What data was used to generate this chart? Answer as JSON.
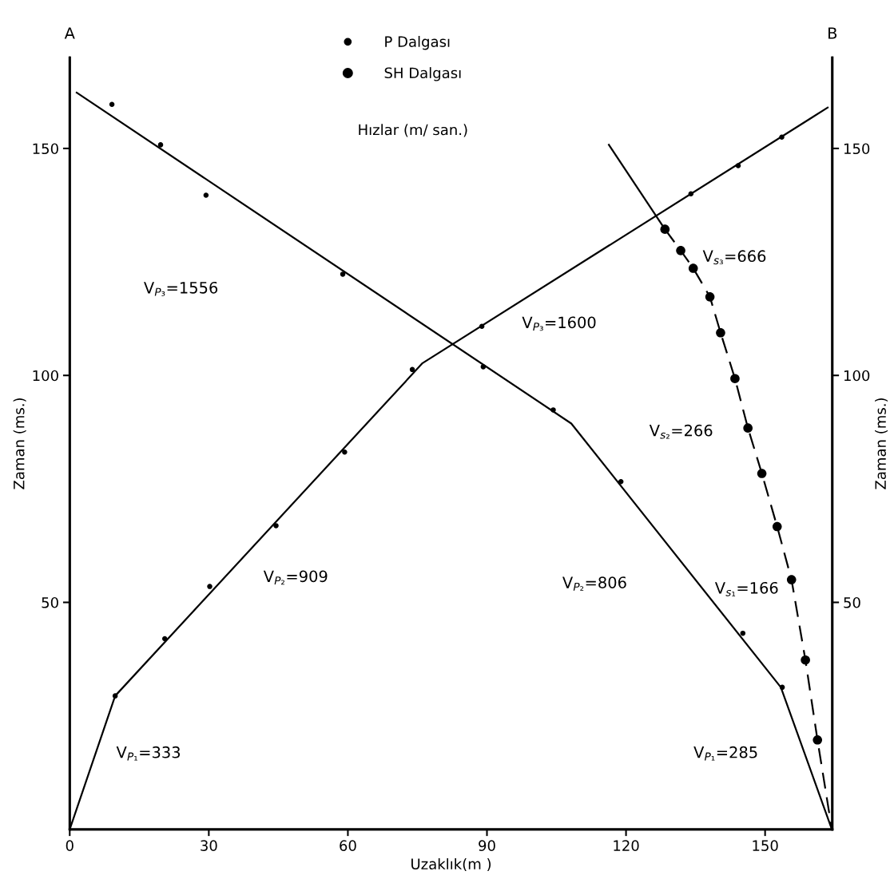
{
  "chart_data": {
    "type": "line",
    "xlabel": "Uzaklık(m )",
    "ylabel": "Zaman (ms.)",
    "y2label": "Zaman (ms.)",
    "xlim": [
      0,
      164.5
    ],
    "xticks": [
      0,
      30,
      60,
      90,
      120,
      150
    ],
    "ylim": [
      0,
      170
    ],
    "yticks": [
      50,
      100,
      150
    ],
    "y2lim": [
      0,
      170
    ],
    "y2ticks": [
      50,
      100,
      150
    ],
    "grid": false,
    "legend": "top",
    "series": [
      {
        "color": "#000000",
        "line_style": "solid",
        "marker": "none",
        "x": [
          0,
          9.8,
          76.1,
          163.5
        ],
        "values": [
          0,
          29.4,
          102.7,
          159
        ]
      },
      {
        "color": "#000000",
        "line_style": "solid",
        "marker": "none",
        "x": [
          164.4,
          153.4,
          108.2,
          1.5
        ],
        "values": [
          0,
          31.3,
          89.4,
          162.3
        ]
      },
      {
        "color": "#000000",
        "line_style": "solid",
        "marker": "none",
        "x": [
          116.3,
          128.4
        ],
        "values": [
          150.8,
          132.2
        ]
      },
      {
        "color": "#000000",
        "line_style": "dashed",
        "marker": "none",
        "x": [
          128.4,
          131.8,
          134.5,
          138.1,
          140.4,
          143.5,
          146.3,
          149.3,
          152.6,
          155.7,
          158.7,
          161.3,
          164.4
        ],
        "values": [
          132.2,
          127.5,
          123.6,
          117.3,
          109.4,
          99.3,
          88.4,
          78.4,
          66.7,
          55.0,
          37.3,
          19.7,
          0
        ]
      },
      {
        "type": "scatter",
        "name": "P Dalgası",
        "color": "#000000",
        "marker": "circle",
        "x": [
          9.8,
          20.5,
          30.2,
          44.5,
          59.3,
          73.9,
          88.9,
          134,
          144.2,
          153.6,
          9.1,
          19.6,
          29.4,
          58.9,
          89.2,
          104.3,
          118.9,
          145.2,
          153.7
        ],
        "values": [
          29.4,
          42,
          53.5,
          66.9,
          83.1,
          101.3,
          110.8,
          140,
          146.2,
          152.5,
          159.7,
          150.8,
          139.7,
          122.3,
          101.9,
          92.4,
          76.6,
          43.2,
          31.3
        ]
      },
      {
        "type": "scatter",
        "name": "SH Dalgası",
        "color": "#000000",
        "marker": "circle",
        "x": [
          128.4,
          131.8,
          134.5,
          138.1,
          140.4,
          143.5,
          146.3,
          149.3,
          152.6,
          155.7,
          158.7,
          161.3
        ],
        "values": [
          132.2,
          127.5,
          123.6,
          117.3,
          109.4,
          99.3,
          88.4,
          78.4,
          66.7,
          55.0,
          37.3,
          19.7
        ]
      }
    ],
    "annotations": [
      "Hızlar (m/ san.)",
      "A",
      "B",
      "V$_{P₃}$=1556",
      "V$_{P₂}$=909",
      "V$_{P₁}$=333",
      "V$_{P₃}$=1600",
      "V$_{P₂}$=806",
      "V$_{s₃}$=666",
      "V$_{s₂}$=266",
      "V$_{s₁}$=166",
      "V$_{P₁}$=285"
    ]
  }
}
